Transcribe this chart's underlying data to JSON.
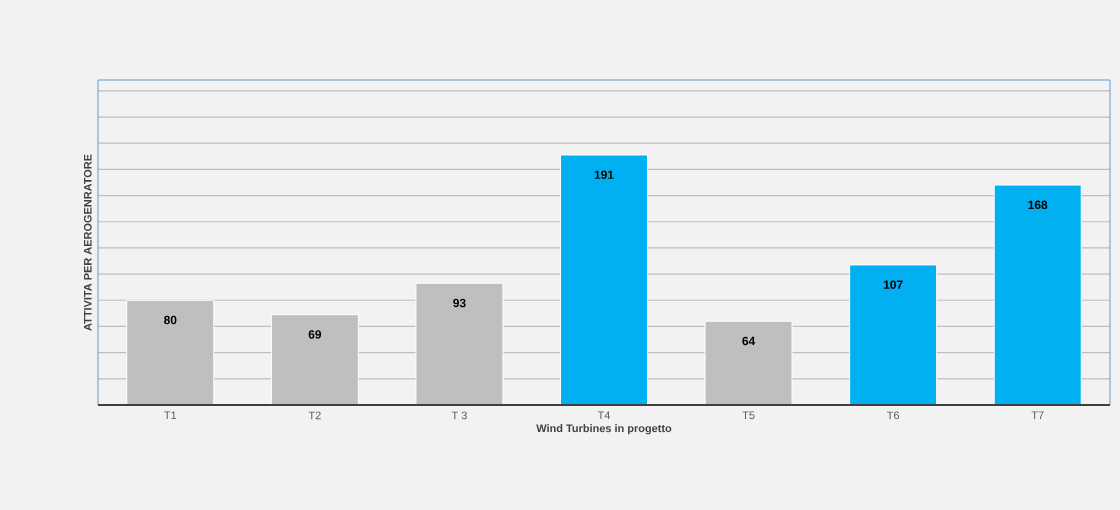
{
  "chart_data": {
    "type": "bar",
    "categories": [
      "T1",
      "T2",
      "T 3",
      "T4",
      "T5",
      "T6",
      "T7"
    ],
    "values": [
      80,
      69,
      93,
      191,
      64,
      107,
      168
    ],
    "colors": [
      "#bfbfbf",
      "#bfbfbf",
      "#bfbfbf",
      "#00b0f0",
      "#bfbfbf",
      "#00b0f0",
      "#00b0f0"
    ],
    "xlabel": "Wind Turbines in progetto",
    "ylabel": "ATTIVITA PER AEROGENRATORE",
    "grid": "y",
    "tick_labels": "x",
    "data_labels": true
  }
}
